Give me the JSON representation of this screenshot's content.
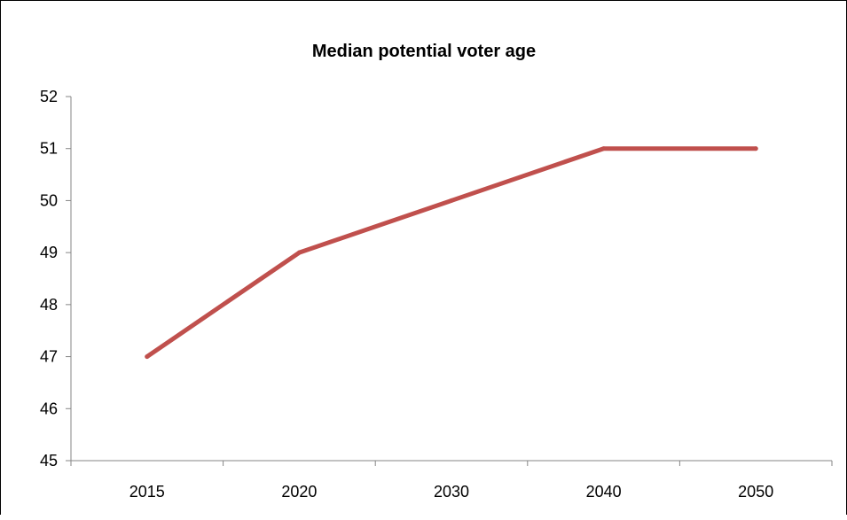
{
  "chart_data": {
    "type": "line",
    "title": "Median potential voter age",
    "xlabel": "",
    "ylabel": "",
    "categories": [
      "2015",
      "2020",
      "2030",
      "2040",
      "2050"
    ],
    "series": [
      {
        "values": [
          47,
          49,
          50,
          51,
          51
        ],
        "color": "#c0504d"
      }
    ],
    "ylim": [
      45,
      52
    ],
    "yticks": [
      45,
      46,
      47,
      48,
      49,
      50,
      51,
      52
    ],
    "grid": false,
    "legend": "none"
  }
}
